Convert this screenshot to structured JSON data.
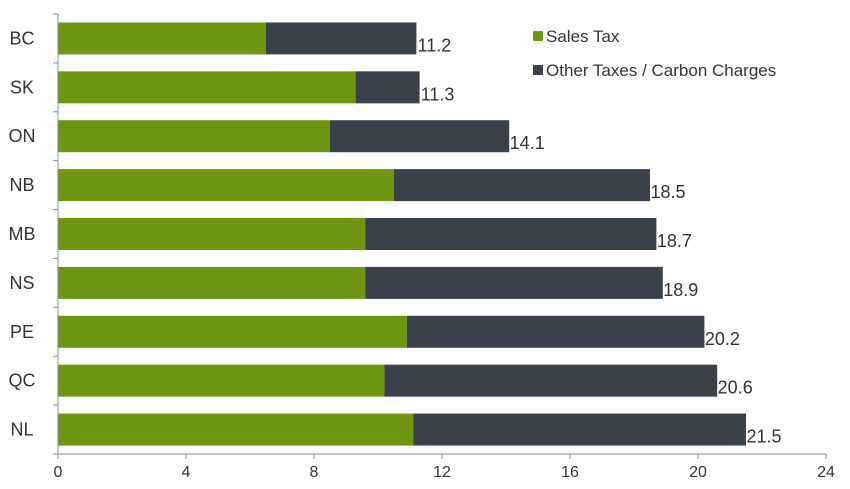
{
  "chart_data": {
    "type": "bar",
    "orientation": "horizontal",
    "stacked": true,
    "categories": [
      "BC",
      "SK",
      "ON",
      "NB",
      "MB",
      "NS",
      "PE",
      "QC",
      "NL"
    ],
    "series": [
      {
        "name": "Sales Tax",
        "color": "#6e9612",
        "values": [
          6.5,
          9.3,
          8.5,
          10.5,
          9.6,
          9.6,
          10.9,
          10.2,
          11.1
        ]
      },
      {
        "name": "Other Taxes / Carbon Charges",
        "color": "#3a4149",
        "values": [
          4.7,
          2.0,
          5.6,
          8.0,
          9.1,
          9.3,
          9.3,
          10.4,
          10.4
        ]
      }
    ],
    "totals": [
      "11.2",
      "11.3",
      "14.1",
      "18.5",
      "18.7",
      "18.9",
      "20.2",
      "20.6",
      "21.5"
    ],
    "xlim": [
      0,
      24
    ],
    "xticks": [
      "0",
      "4",
      "8",
      "12",
      "16",
      "20",
      "24"
    ],
    "grid": false,
    "legend_position": "top-right",
    "title": "",
    "xlabel": "",
    "ylabel": ""
  }
}
